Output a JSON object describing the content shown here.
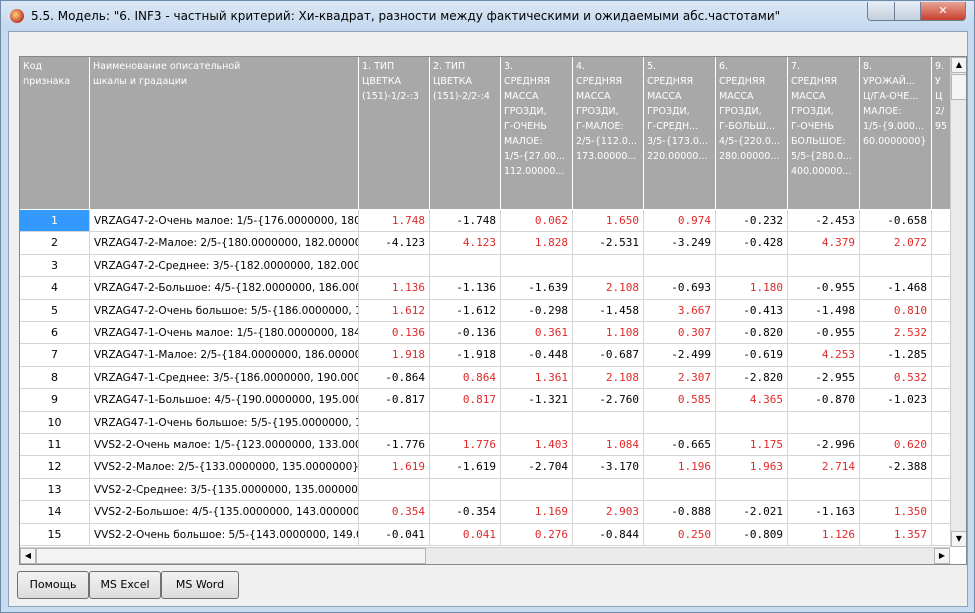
{
  "window": {
    "title": "5.5. Модель: \"6. INF3 - частный критерий: Хи-квадрат, разности между фактическими и ожидаемыми абс.частотами\""
  },
  "table": {
    "headers": [
      "Код\nпризнака",
      "Наименование описательной\nшкалы и градации",
      "1. ТИП\nЦВЕТКА\n(151)-1/2-:3",
      "2. ТИП\nЦВЕТКА\n(151)-2/2-:4",
      "3.\nСРЕДНЯЯ\nМАССА\nГРОЗДИ,\nГ-ОЧЕНЬ\nМАЛОЕ:\n1/5-{27.00...\n112.00000...",
      "4.\nСРЕДНЯЯ\nМАССА\nГРОЗДИ,\nГ-МАЛОЕ:\n2/5-{112.0...\n173.00000...",
      "5.\nСРЕДНЯЯ\nМАССА\nГРОЗДИ,\nГ-СРЕДН...\n3/5-{173.0...\n220.00000...",
      "6.\nСРЕДНЯЯ\nМАССА\nГРОЗДИ,\nГ-БОЛЬШ...\n4/5-{220.0...\n280.00000...",
      "7.\nСРЕДНЯЯ\nМАССА\nГРОЗДИ,\nГ-ОЧЕНЬ\nБОЛЬШОЕ:\n5/5-{280.0...\n400.00000...",
      "8.\nУРОЖАЙ...\nЦ/ГА-ОЧЕ...\nМАЛОЕ:\n1/5-{9.000...\n60.0000000}",
      "9.\nУ\nЦ\n2/\n95"
    ],
    "rows": [
      {
        "code": "1",
        "name": "VRZAG47-2-Очень малое: 1/5-{176.0000000, 180...",
        "values": [
          "1.748",
          "-1.748",
          "0.062",
          "1.650",
          "0.974",
          "-0.232",
          "-2.453",
          "-0.658"
        ]
      },
      {
        "code": "2",
        "name": "VRZAG47-2-Малое: 2/5-{180.0000000, 182.00000...",
        "values": [
          "-4.123",
          "4.123",
          "1.828",
          "-2.531",
          "-3.249",
          "-0.428",
          "4.379",
          "2.072"
        ]
      },
      {
        "code": "3",
        "name": "VRZAG47-2-Среднее: 3/5-{182.0000000, 182.000...",
        "values": []
      },
      {
        "code": "4",
        "name": "VRZAG47-2-Большое: 4/5-{182.0000000, 186.000...",
        "values": [
          "1.136",
          "-1.136",
          "-1.639",
          "2.108",
          "-0.693",
          "1.180",
          "-0.955",
          "-1.468"
        ]
      },
      {
        "code": "5",
        "name": "VRZAG47-2-Очень большое: 5/5-{186.0000000, 1...",
        "values": [
          "1.612",
          "-1.612",
          "-0.298",
          "-1.458",
          "3.667",
          "-0.413",
          "-1.498",
          "0.810"
        ]
      },
      {
        "code": "6",
        "name": "VRZAG47-1-Очень малое: 1/5-{180.0000000, 184...",
        "values": [
          "0.136",
          "-0.136",
          "0.361",
          "1.108",
          "0.307",
          "-0.820",
          "-0.955",
          "2.532"
        ]
      },
      {
        "code": "7",
        "name": "VRZAG47-1-Малое: 2/5-{184.0000000, 186.000000...",
        "values": [
          "1.918",
          "-1.918",
          "-0.448",
          "-0.687",
          "-2.499",
          "-0.619",
          "4.253",
          "-1.285"
        ]
      },
      {
        "code": "8",
        "name": "VRZAG47-1-Среднее: 3/5-{186.0000000, 190.0000...",
        "values": [
          "-0.864",
          "0.864",
          "1.361",
          "2.108",
          "2.307",
          "-2.820",
          "-2.955",
          "0.532"
        ]
      },
      {
        "code": "9",
        "name": "VRZAG47-1-Большое: 4/5-{190.0000000, 195.000...",
        "values": [
          "-0.817",
          "0.817",
          "-1.321",
          "-2.760",
          "0.585",
          "4.365",
          "-0.870",
          "-1.023"
        ]
      },
      {
        "code": "10",
        "name": "VRZAG47-1-Очень большое: 5/5-{195.0000000, 1...",
        "values": []
      },
      {
        "code": "11",
        "name": "VVS2-2-Очень малое: 1/5-{123.0000000, 133.000...",
        "values": [
          "-1.776",
          "1.776",
          "1.403",
          "1.084",
          "-0.665",
          "1.175",
          "-2.996",
          "0.620"
        ]
      },
      {
        "code": "12",
        "name": "VVS2-2-Малое: 2/5-{133.0000000, 135.0000000} ...",
        "values": [
          "1.619",
          "-1.619",
          "-2.704",
          "-3.170",
          "1.196",
          "1.963",
          "2.714",
          "-2.388"
        ]
      },
      {
        "code": "13",
        "name": "VVS2-2-Среднее: 3/5-{135.0000000, 135.0000000...",
        "values": []
      },
      {
        "code": "14",
        "name": "VVS2-2-Большое: 4/5-{135.0000000, 143.000000...",
        "values": [
          "0.354",
          "-0.354",
          "1.169",
          "2.903",
          "-0.888",
          "-2.021",
          "-1.163",
          "1.350"
        ]
      },
      {
        "code": "15",
        "name": "VVS2-2-Очень большое: 5/5-{143.0000000, 149.0...",
        "values": [
          "-0.041",
          "0.041",
          "0.276",
          "-0.844",
          "0.250",
          "-0.809",
          "1.126",
          "1.357"
        ]
      }
    ]
  },
  "buttons": [
    "Помощь",
    "MS Excel",
    "MS Word"
  ]
}
